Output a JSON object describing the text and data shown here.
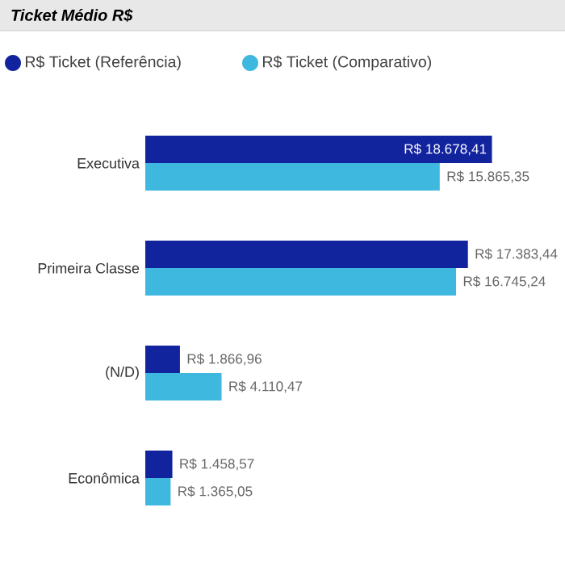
{
  "chart_data": {
    "type": "bar",
    "orientation": "horizontal",
    "title": "Ticket Médio R$",
    "legend": "top left",
    "categories": [
      "Executiva",
      "Primeira Classe",
      "(N/D)",
      "Econômica"
    ],
    "series": [
      {
        "name": "R$ Ticket (Referência)",
        "color": "#12239e",
        "values": [
          18678.41,
          17383.44,
          1866.96,
          1458.57
        ],
        "value_labels": [
          "R$ 18.678,41",
          "R$ 17.383,44",
          "R$ 1.866,96",
          "R$ 1.458,57"
        ]
      },
      {
        "name": "R$ Ticket (Comparativo)",
        "color": "#3fb8df",
        "values": [
          15865.35,
          16745.24,
          4110.47,
          1365.05
        ],
        "value_labels": [
          "R$ 15.865,35",
          "R$ 16.745,24",
          "R$ 4.110,47",
          "R$ 1.365,05"
        ]
      }
    ]
  }
}
